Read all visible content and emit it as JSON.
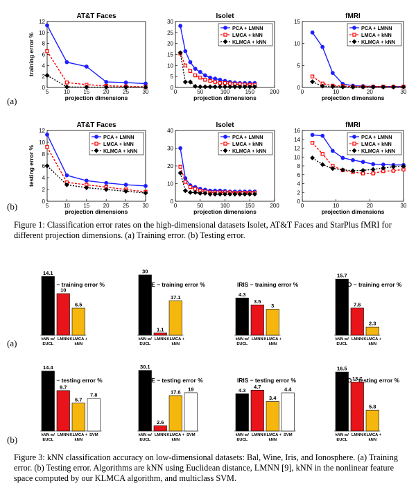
{
  "figure1": {
    "row_labels": [
      "(a)",
      "(b)"
    ],
    "caption": "Figure 1: Classification error rates on the high-dimensional datasets Isolet, AT&T Faces and StarPlus fMRI for different projection dimensions. (a) Training error. (b) Testing error.",
    "legend": [
      "PCA + LMNN",
      "LMCA + kNN",
      "KLMCA + kNN"
    ]
  },
  "figure3": {
    "row_labels": [
      "(a)",
      "(b)"
    ],
    "caption": "Figure 3: kNN classification accuracy on low-dimensional datasets: Bal, Wine, Iris, and Ionosphere. (a) Training error. (b) Testing error. Algorithms are kNN using Euclidean distance, LMNN [9], kNN in the nonlinear feature space computed by our KLMCA algorithm, and multiclass SVM."
  },
  "colors": {
    "pca": "#1f1fff",
    "lmca": "#ff0000",
    "klmca": "#000000",
    "bar_black": "#000000",
    "bar_red": "#e8141a",
    "bar_yellow": "#f5b70d",
    "bar_white": "#ffffff"
  },
  "chart_data": [
    {
      "type": "line",
      "title": "AT&T Faces",
      "xlabel": "projection dimensions",
      "ylabel": "training error %",
      "xlim": [
        5,
        30
      ],
      "ylim": [
        0,
        12
      ],
      "xticks": [
        5,
        10,
        15,
        20,
        25,
        30
      ],
      "yticks": [
        0,
        2,
        4,
        6,
        8,
        10,
        12
      ],
      "legend_pos": "none",
      "series": [
        {
          "name": "PCA + LMNN",
          "x": [
            5,
            10,
            15,
            20,
            25,
            30
          ],
          "y": [
            11.3,
            4.6,
            3.8,
            1.0,
            0.9,
            0.7
          ]
        },
        {
          "name": "LMCA + kNN",
          "x": [
            5,
            10,
            15,
            20,
            25,
            30
          ],
          "y": [
            6.6,
            0.9,
            0.5,
            0.3,
            0.2,
            0.1
          ]
        },
        {
          "name": "KLMCA + kNN",
          "x": [
            5,
            10,
            15,
            20,
            25,
            30
          ],
          "y": [
            2.2,
            0.1,
            0.05,
            0.05,
            0.05,
            0.05
          ]
        }
      ]
    },
    {
      "type": "line",
      "title": "Isolet",
      "xlabel": "projection dimensions",
      "ylabel": "",
      "xlim": [
        0,
        200
      ],
      "ylim": [
        0,
        30
      ],
      "xticks": [
        0,
        50,
        100,
        150,
        200
      ],
      "yticks": [
        0,
        5,
        10,
        15,
        20,
        25,
        30
      ],
      "legend_pos": "top-right",
      "series": [
        {
          "name": "PCA + LMNN",
          "x": [
            10,
            20,
            30,
            40,
            50,
            60,
            70,
            80,
            90,
            100,
            110,
            120,
            130,
            140,
            150,
            160
          ],
          "y": [
            28,
            16.5,
            11.5,
            8.5,
            7,
            5.5,
            4.5,
            4,
            3.5,
            3,
            2.5,
            2.2,
            2,
            2,
            2,
            2
          ]
        },
        {
          "name": "LMCA + kNN",
          "x": [
            10,
            20,
            30,
            40,
            50,
            60,
            70,
            80,
            90,
            100,
            110,
            120,
            130,
            140,
            150,
            160
          ],
          "y": [
            15.5,
            10,
            7.5,
            5.5,
            4.5,
            3.5,
            3,
            2.5,
            2,
            2,
            1.8,
            1.5,
            1.5,
            1.3,
            1.2,
            1.2
          ]
        },
        {
          "name": "KLMCA + kNN",
          "x": [
            10,
            20,
            30,
            40,
            50,
            60,
            70,
            80,
            90,
            100,
            110,
            120,
            130,
            140,
            150,
            160
          ],
          "y": [
            15.8,
            2.5,
            2.5,
            0.5,
            0.3,
            0.3,
            0.3,
            0.3,
            0.3,
            0.3,
            0.3,
            0.3,
            0.3,
            0.3,
            0.3,
            0.3
          ]
        }
      ]
    },
    {
      "type": "line",
      "title": "fMRI",
      "xlabel": "projection dimensions",
      "ylabel": "",
      "xlim": [
        0,
        30
      ],
      "ylim": [
        0,
        15
      ],
      "xticks": [
        0,
        10,
        20,
        30
      ],
      "yticks": [
        0,
        5,
        10,
        15
      ],
      "legend_pos": "top-right",
      "series": [
        {
          "name": "PCA + LMNN",
          "x": [
            3,
            6,
            9,
            12,
            15,
            18,
            21,
            24,
            27,
            30
          ],
          "y": [
            12.5,
            9.2,
            3.3,
            0.8,
            0.4,
            0.3,
            0.2,
            0.2,
            0.2,
            0.2
          ]
        },
        {
          "name": "LMCA + kNN",
          "x": [
            3,
            6,
            9,
            12,
            15,
            18,
            21,
            24,
            27,
            30
          ],
          "y": [
            2.5,
            0.9,
            0.4,
            0.3,
            0.2,
            0.2,
            0.2,
            0.2,
            0.2,
            0.2
          ]
        },
        {
          "name": "KLMCA + kNN",
          "x": [
            3,
            6,
            9,
            12,
            15,
            18,
            21,
            24,
            27,
            30
          ],
          "y": [
            1.3,
            0.3,
            0.2,
            0.1,
            0.1,
            0.1,
            0.1,
            0.1,
            0.1,
            0.1
          ]
        }
      ]
    },
    {
      "type": "line",
      "title": "AT&T Faces",
      "xlabel": "projection dimensions",
      "ylabel": "testing error %",
      "xlim": [
        5,
        30
      ],
      "ylim": [
        0,
        12
      ],
      "xticks": [
        5,
        10,
        15,
        20,
        25,
        30
      ],
      "yticks": [
        0,
        2,
        4,
        6,
        8,
        10,
        12
      ],
      "legend_pos": "top-right",
      "series": [
        {
          "name": "PCA + LMNN",
          "x": [
            5,
            10,
            15,
            20,
            25,
            30
          ],
          "y": [
            11.3,
            4.4,
            3.5,
            3.1,
            2.8,
            2.6
          ]
        },
        {
          "name": "LMCA + kNN",
          "x": [
            5,
            10,
            15,
            20,
            25,
            30
          ],
          "y": [
            9.2,
            3.2,
            2.8,
            2.4,
            2.0,
            1.6
          ]
        },
        {
          "name": "KLMCA + kNN",
          "x": [
            5,
            10,
            15,
            20,
            25,
            30
          ],
          "y": [
            6.0,
            2.8,
            2.3,
            2.0,
            1.7,
            1.4
          ]
        }
      ]
    },
    {
      "type": "line",
      "title": "Isolet",
      "xlabel": "projection dimensions",
      "ylabel": "",
      "xlim": [
        0,
        200
      ],
      "ylim": [
        0,
        40
      ],
      "xticks": [
        0,
        50,
        100,
        150,
        200
      ],
      "yticks": [
        0,
        10,
        20,
        30,
        40
      ],
      "legend_pos": "top-right",
      "series": [
        {
          "name": "PCA + LMNN",
          "x": [
            10,
            20,
            30,
            40,
            50,
            60,
            70,
            80,
            90,
            100,
            110,
            120,
            130,
            140,
            150,
            160
          ],
          "y": [
            30,
            13,
            9,
            8,
            7,
            6.5,
            6,
            6,
            6,
            5.8,
            5.5,
            5.5,
            5.5,
            5.5,
            5.5,
            5.5
          ]
        },
        {
          "name": "LMCA + kNN",
          "x": [
            10,
            20,
            30,
            40,
            50,
            60,
            70,
            80,
            90,
            100,
            110,
            120,
            130,
            140,
            150,
            160
          ],
          "y": [
            19.5,
            11,
            8,
            7,
            6,
            5.5,
            5,
            5,
            5,
            5,
            5,
            4.8,
            4.8,
            4.8,
            4.8,
            4.8
          ]
        },
        {
          "name": "KLMCA + kNN",
          "x": [
            10,
            20,
            30,
            40,
            50,
            60,
            70,
            80,
            90,
            100,
            110,
            120,
            130,
            140,
            150,
            160
          ],
          "y": [
            16,
            6,
            5,
            5,
            4.5,
            4.5,
            4,
            4,
            4,
            4,
            4,
            4,
            4,
            4,
            4,
            4
          ]
        }
      ]
    },
    {
      "type": "line",
      "title": "fMRI",
      "xlabel": "projection dimensions",
      "ylabel": "",
      "xlim": [
        0,
        30
      ],
      "ylim": [
        0,
        16
      ],
      "xticks": [
        0,
        10,
        20,
        30
      ],
      "yticks": [
        0,
        2,
        4,
        6,
        8,
        10,
        12,
        14,
        16
      ],
      "legend_pos": "top-right",
      "series": [
        {
          "name": "PCA + LMNN",
          "x": [
            3,
            6,
            9,
            12,
            15,
            18,
            21,
            24,
            27,
            30
          ],
          "y": [
            15.0,
            14.8,
            11.4,
            9.8,
            9.3,
            8.9,
            8.4,
            8.3,
            8.2,
            8.2
          ]
        },
        {
          "name": "LMCA + kNN",
          "x": [
            3,
            6,
            9,
            12,
            15,
            18,
            21,
            24,
            27,
            30
          ],
          "y": [
            13.2,
            10.7,
            8.0,
            7.0,
            6.6,
            6.3,
            6.3,
            6.8,
            6.9,
            7.2
          ]
        },
        {
          "name": "KLMCA + kNN",
          "x": [
            3,
            6,
            9,
            12,
            15,
            18,
            21,
            24,
            27,
            30
          ],
          "y": [
            9.8,
            8.3,
            7.4,
            7.1,
            6.9,
            7.0,
            7.2,
            7.5,
            7.8,
            7.9
          ]
        }
      ]
    },
    {
      "type": "bar",
      "title": "BAL − training error %",
      "categories": [
        "kNN w/ EUCL",
        "LMNN",
        "KLMCA + kNN"
      ],
      "values": [
        14.1,
        10,
        6.5
      ],
      "value_labels": [
        "14.1",
        "10",
        "6.5"
      ],
      "colors": [
        "#000000",
        "#e8141a",
        "#f5b70d"
      ]
    },
    {
      "type": "bar",
      "title": "WINE − training error %",
      "categories": [
        "kNN w/ EUCL",
        "LMNN",
        "KLMCA + kNN"
      ],
      "values": [
        30,
        1.1,
        17.1
      ],
      "value_labels": [
        "30",
        "1.1",
        "17.1"
      ],
      "colors": [
        "#000000",
        "#e8141a",
        "#f5b70d"
      ]
    },
    {
      "type": "bar",
      "title": "IRIS − training error %",
      "categories": [
        "kNN w/ EUCL",
        "LMNN",
        "KLMCA + kNN"
      ],
      "values": [
        4.3,
        3.5,
        3
      ],
      "value_labels": [
        "4.3",
        "3.5",
        "3"
      ],
      "colors": [
        "#000000",
        "#e8141a",
        "#f5b70d"
      ]
    },
    {
      "type": "bar",
      "title": "IONO − training error %",
      "categories": [
        "kNN w/ EUCL",
        "LMNN",
        "KLMCA + kNN"
      ],
      "values": [
        15.7,
        7.6,
        2.3
      ],
      "value_labels": [
        "15.7",
        "7.6",
        "2.3"
      ],
      "colors": [
        "#000000",
        "#e8141a",
        "#f5b70d"
      ]
    },
    {
      "type": "bar",
      "title": "BAL − testing error %",
      "categories": [
        "kNN w/ EUCL",
        "LMNN",
        "KLMCA + kNN",
        "SVM"
      ],
      "values": [
        14.4,
        9.7,
        6.7,
        7.8
      ],
      "value_labels": [
        "14.4",
        "9.7",
        "6.7",
        "7.8"
      ],
      "colors": [
        "#000000",
        "#e8141a",
        "#f5b70d",
        "#ffffff"
      ]
    },
    {
      "type": "bar",
      "title": "WINE − testing error %",
      "categories": [
        "kNN w/ EUCL",
        "LMNN",
        "KLMCA + kNN",
        "SVM"
      ],
      "values": [
        30.1,
        2.6,
        17.6,
        19
      ],
      "value_labels": [
        "30.1",
        "2.6",
        "17.6",
        "19"
      ],
      "colors": [
        "#000000",
        "#e8141a",
        "#f5b70d",
        "#ffffff"
      ]
    },
    {
      "type": "bar",
      "title": "IRIS − testing error %",
      "categories": [
        "kNN w/ EUCL",
        "LMNN",
        "KLMCA + kNN",
        "SVM"
      ],
      "values": [
        4.3,
        4.7,
        3.4,
        4.4
      ],
      "value_labels": [
        "4.3",
        "4.7",
        "3.4",
        "4.4"
      ],
      "colors": [
        "#000000",
        "#e8141a",
        "#f5b70d",
        "#ffffff"
      ]
    },
    {
      "type": "bar",
      "title": "IONO − testing error %",
      "categories": [
        "kNN w/ EUCL",
        "LMNN",
        "KLMCA + kNN"
      ],
      "values": [
        16.5,
        13.7,
        5.8
      ],
      "value_labels": [
        "16.5",
        "13.7",
        "5.8"
      ],
      "colors": [
        "#000000",
        "#e8141a",
        "#f5b70d"
      ]
    }
  ]
}
